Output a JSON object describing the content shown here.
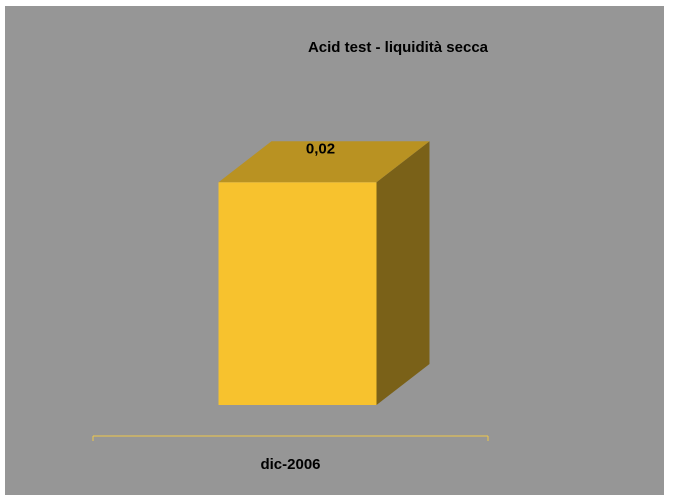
{
  "chart_data": {
    "type": "bar",
    "title": "Acid test - liquidità secca",
    "categories": [
      "dic-2006"
    ],
    "values": [
      0.02
    ],
    "data_labels": [
      "0,02"
    ],
    "ylim": [
      0,
      0.022
    ],
    "three_d": true,
    "legend": "none",
    "grid": false,
    "colors": {
      "plot_background": "#969696",
      "bar_front": "#F7C22E",
      "bar_top": "#B99222",
      "bar_side": "#7A6118",
      "axis_line": "#F0C848"
    }
  }
}
